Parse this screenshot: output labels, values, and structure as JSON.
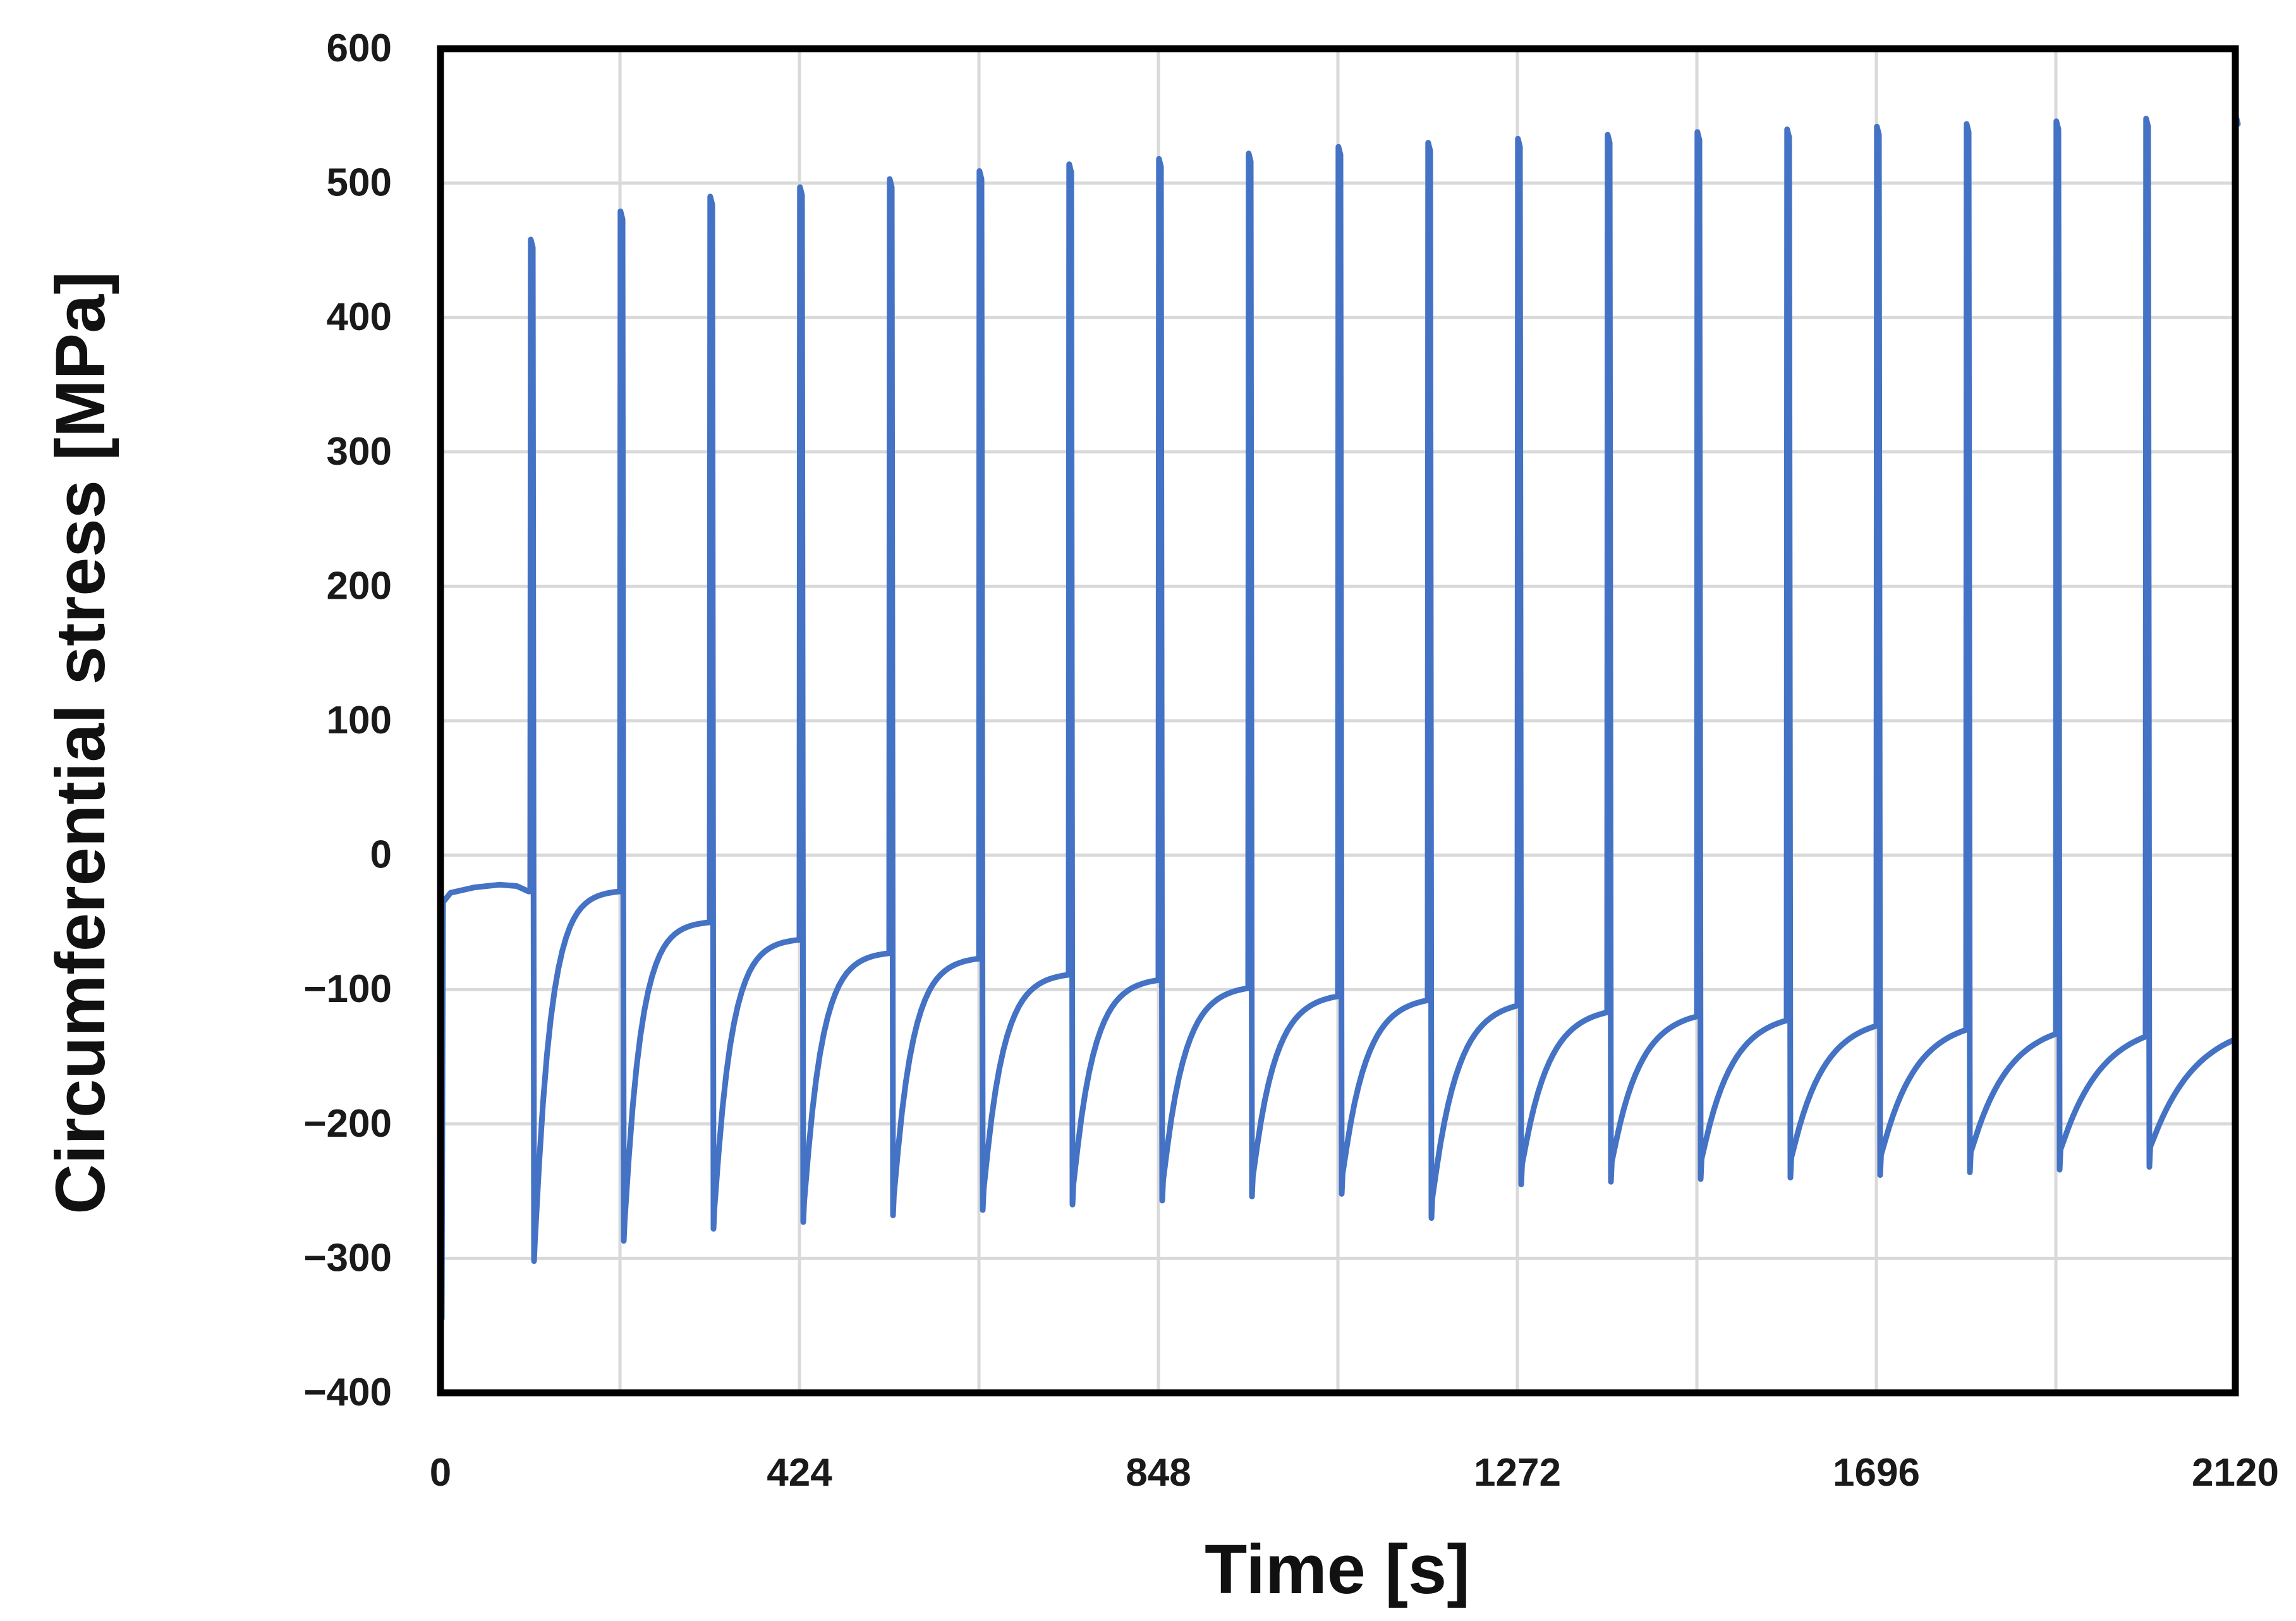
{
  "chart_data": {
    "type": "line",
    "title": "",
    "xlabel": "Time [s]",
    "ylabel": "Circumferential stress [MPa]",
    "xlim": [
      0,
      2120
    ],
    "ylim": [
      -400,
      600
    ],
    "grid": true,
    "x_ticks": [
      0,
      212,
      424,
      636,
      848,
      1060,
      1272,
      1484,
      1696,
      1908,
      2120
    ],
    "x_tick_labels": [
      "0",
      "424",
      "848",
      "1272",
      "1696",
      "2120"
    ],
    "x_tick_label_values": [
      0,
      424,
      848,
      1272,
      1696,
      2120
    ],
    "y_tick_labels": [
      "600",
      "500",
      "400",
      "300",
      "200",
      "100",
      "0",
      "−100",
      "−200",
      "−300",
      "−400"
    ],
    "y_tick_label_values": [
      600,
      500,
      400,
      300,
      200,
      100,
      0,
      -100,
      -200,
      -300,
      -400
    ],
    "line_color": "#4472C4",
    "initial": {
      "t": 0,
      "value": -5,
      "min": -345,
      "settle": -35
    },
    "cycles": [
      {
        "start": 106,
        "peak": 458,
        "trough": -302,
        "end": -27
      },
      {
        "start": 212,
        "peak": 479,
        "trough": -287,
        "end": -50
      },
      {
        "start": 318,
        "peak": 490,
        "trough": -278,
        "end": -63
      },
      {
        "start": 424,
        "peak": 497,
        "trough": -273,
        "end": -73
      },
      {
        "start": 530,
        "peak": 503,
        "trough": -268,
        "end": -77
      },
      {
        "start": 636,
        "peak": 509,
        "trough": -264,
        "end": -89
      },
      {
        "start": 742,
        "peak": 514,
        "trough": -260,
        "end": -93
      },
      {
        "start": 848,
        "peak": 518,
        "trough": -257,
        "end": -99
      },
      {
        "start": 954,
        "peak": 522,
        "trough": -254,
        "end": -105
      },
      {
        "start": 1060,
        "peak": 527,
        "trough": -252,
        "end": -108
      },
      {
        "start": 1166,
        "peak": 530,
        "trough": -270,
        "end": -112
      },
      {
        "start": 1272,
        "peak": 533,
        "trough": -245,
        "end": -117
      },
      {
        "start": 1378,
        "peak": 536,
        "trough": -243,
        "end": -120
      },
      {
        "start": 1484,
        "peak": 538,
        "trough": -241,
        "end": -123
      },
      {
        "start": 1590,
        "peak": 540,
        "trough": -240,
        "end": -127
      },
      {
        "start": 1696,
        "peak": 542,
        "trough": -238,
        "end": -130
      },
      {
        "start": 1802,
        "peak": 544,
        "trough": -236,
        "end": -133
      },
      {
        "start": 1908,
        "peak": 546,
        "trough": -234,
        "end": -135
      },
      {
        "start": 2014,
        "peak": 548,
        "trough": -232,
        "end": -137
      },
      {
        "start": 2120,
        "peak": 550,
        "trough": null,
        "end": null
      }
    ]
  }
}
